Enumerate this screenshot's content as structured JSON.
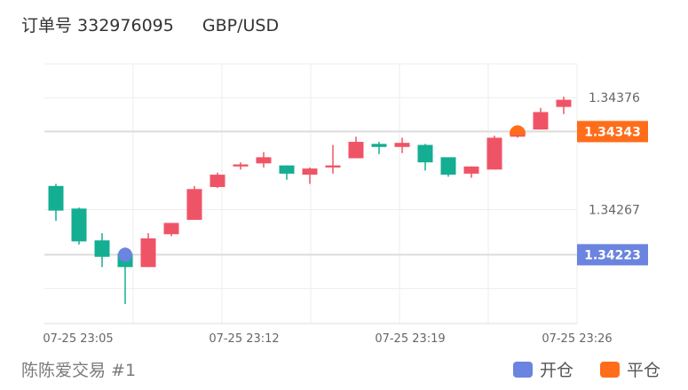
{
  "header": {
    "order_label": "订单号 332976095",
    "pair": "GBP/USD"
  },
  "footer": {
    "account": "陈陈爱交易 #1"
  },
  "legend": [
    {
      "label": "开仓",
      "color": "#6b84e0"
    },
    {
      "label": "平仓",
      "color": "#ff6d1a"
    }
  ],
  "colors": {
    "up": "#ef5466",
    "down": "#14ae92",
    "grid": "#eeeeee",
    "axis_text": "#666666"
  },
  "chart_data": {
    "type": "candlestick",
    "y_ticks": [
      "1.34376",
      "1.34267"
    ],
    "x_ticks": [
      "07-25 23:05",
      "07-25 23:12",
      "07-25 23:19",
      "07-25 23:26"
    ],
    "candles": [
      {
        "o": 1.3429,
        "h": 1.34292,
        "l": 1.34256,
        "c": 1.34266
      },
      {
        "o": 1.34268,
        "h": 1.34269,
        "l": 1.34233,
        "c": 1.34236
      },
      {
        "o": 1.34237,
        "h": 1.34244,
        "l": 1.34211,
        "c": 1.34221
      },
      {
        "o": 1.34224,
        "h": 1.3423,
        "l": 1.34175,
        "c": 1.34211
      },
      {
        "o": 1.34211,
        "h": 1.34244,
        "l": 1.34211,
        "c": 1.34239
      },
      {
        "o": 1.34243,
        "h": 1.34254,
        "l": 1.34241,
        "c": 1.34254
      },
      {
        "o": 1.34257,
        "h": 1.3429,
        "l": 1.34257,
        "c": 1.34287
      },
      {
        "o": 1.34289,
        "h": 1.34303,
        "l": 1.34288,
        "c": 1.34301
      },
      {
        "o": 1.34309,
        "h": 1.34313,
        "l": 1.34306,
        "c": 1.34311
      },
      {
        "o": 1.34312,
        "h": 1.34323,
        "l": 1.34308,
        "c": 1.34318
      },
      {
        "o": 1.3431,
        "h": 1.3431,
        "l": 1.34296,
        "c": 1.34302
      },
      {
        "o": 1.34301,
        "h": 1.34308,
        "l": 1.34292,
        "c": 1.34307
      },
      {
        "o": 1.34308,
        "h": 1.3433,
        "l": 1.34302,
        "c": 1.3431
      },
      {
        "o": 1.34317,
        "h": 1.34338,
        "l": 1.34317,
        "c": 1.34333
      },
      {
        "o": 1.34331,
        "h": 1.34333,
        "l": 1.34321,
        "c": 1.34328
      },
      {
        "o": 1.34328,
        "h": 1.34337,
        "l": 1.34322,
        "c": 1.34332
      },
      {
        "o": 1.3433,
        "h": 1.34331,
        "l": 1.34305,
        "c": 1.34313
      },
      {
        "o": 1.34318,
        "h": 1.34318,
        "l": 1.34299,
        "c": 1.34301
      },
      {
        "o": 1.34302,
        "h": 1.34309,
        "l": 1.34298,
        "c": 1.34309
      },
      {
        "o": 1.34306,
        "h": 1.34339,
        "l": 1.34306,
        "c": 1.34337
      },
      {
        "o": 1.34338,
        "h": 1.34346,
        "l": 1.34337,
        "c": 1.34341
      },
      {
        "o": 1.34345,
        "h": 1.34366,
        "l": 1.34345,
        "c": 1.34362
      },
      {
        "o": 1.34367,
        "h": 1.34377,
        "l": 1.3436,
        "c": 1.34374
      }
    ],
    "markers": [
      {
        "label": "1.34223",
        "price": 1.34223,
        "candle": 3,
        "kind": "open",
        "color": "#6b84e0"
      },
      {
        "label": "1.34343",
        "price": 1.34343,
        "candle": 20,
        "kind": "close",
        "color": "#ff6d1a"
      }
    ],
    "y_range": [
      1.34156,
      1.34409
    ]
  }
}
